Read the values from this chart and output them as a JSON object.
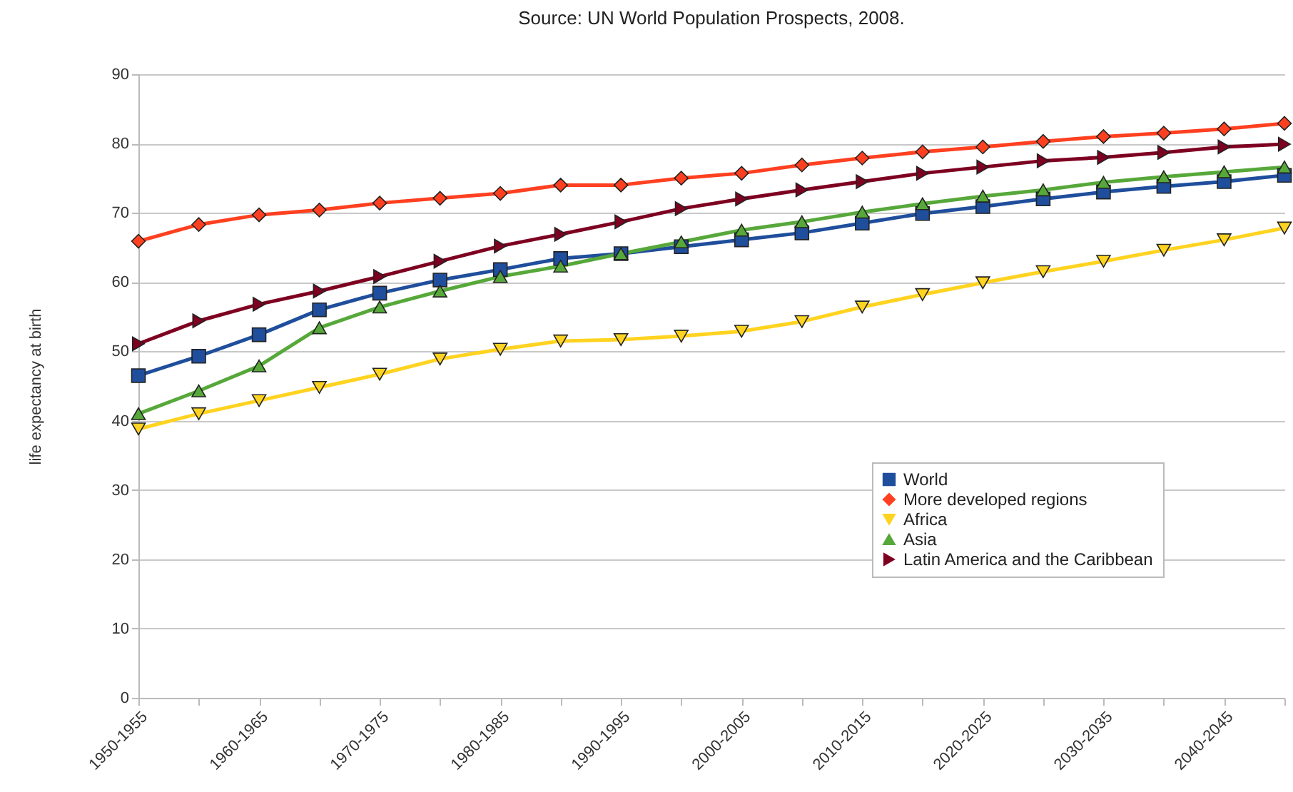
{
  "chart_data": {
    "type": "line",
    "title": "Source: UN World Population Prospects, 2008.",
    "ylabel": "life expectancy at birth",
    "categories": [
      "1950-1955",
      null,
      "1960-1965",
      null,
      "1970-1975",
      null,
      "1980-1985",
      null,
      "1990-1995",
      null,
      "2000-2005",
      null,
      "2010-2015",
      null,
      "2020-2025",
      null,
      "2030-2035",
      null,
      "2040-2045",
      null
    ],
    "series": [
      {
        "name": "World",
        "color": "#1f4e9c",
        "marker": "square",
        "values": [
          46.5,
          49.3,
          52.4,
          56.0,
          58.4,
          60.3,
          61.8,
          63.4,
          64.1,
          65.1,
          66.1,
          67.1,
          68.5,
          69.9,
          70.9,
          72.0,
          73.0,
          73.8,
          74.5,
          75.4
        ]
      },
      {
        "name": "More developed regions",
        "color": "#ff4020",
        "marker": "diamond",
        "values": [
          65.9,
          68.3,
          69.7,
          70.4,
          71.4,
          72.1,
          72.8,
          74.0,
          74.0,
          75.0,
          75.7,
          76.9,
          77.9,
          78.8,
          79.5,
          80.3,
          81.0,
          81.5,
          82.1,
          82.9
        ]
      },
      {
        "name": "Africa",
        "color": "#ffd320",
        "marker": "triangle-down",
        "values": [
          38.8,
          41.0,
          42.9,
          44.8,
          46.7,
          48.9,
          50.3,
          51.5,
          51.7,
          52.2,
          52.9,
          54.3,
          56.4,
          58.2,
          59.9,
          61.5,
          63.0,
          64.6,
          66.1,
          67.8
        ]
      },
      {
        "name": "Asia",
        "color": "#57a83a",
        "marker": "triangle",
        "values": [
          41.0,
          44.3,
          47.9,
          53.4,
          56.4,
          58.7,
          60.8,
          62.3,
          64.1,
          65.8,
          67.5,
          68.7,
          70.1,
          71.3,
          72.4,
          73.3,
          74.4,
          75.2,
          75.9,
          76.6
        ]
      },
      {
        "name": "Latin America and the Caribbean",
        "color": "#7e0021",
        "marker": "triangle-right",
        "values": [
          51.1,
          54.4,
          56.8,
          58.7,
          60.8,
          63.0,
          65.2,
          66.9,
          68.7,
          70.6,
          72.0,
          73.3,
          74.5,
          75.7,
          76.6,
          77.5,
          78.0,
          78.7,
          79.5,
          79.9
        ]
      }
    ],
    "ylim": [
      0,
      90
    ],
    "yticks": [
      0,
      10,
      20,
      30,
      40,
      50,
      60,
      70,
      80,
      90
    ],
    "grid": "y",
    "legend": "bottom right"
  }
}
